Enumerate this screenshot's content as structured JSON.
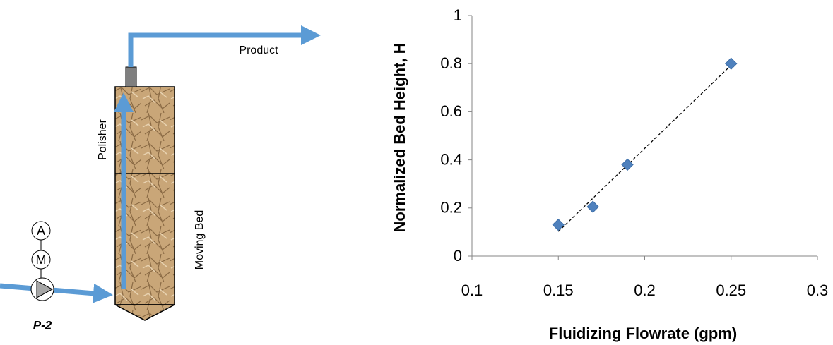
{
  "diagram": {
    "product": "Product",
    "polisher": "Polisher",
    "moving_bed": "Moving Bed",
    "meter_a": "A",
    "meter_m": "M",
    "pump": "P-2"
  },
  "chart_data": {
    "type": "scatter",
    "xlabel": "Fluidizing Flowrate (gpm)",
    "ylabel": "Normalized Bed Height, H",
    "x": [
      0.15,
      0.17,
      0.19,
      0.25
    ],
    "values": [
      0.13,
      0.205,
      0.38,
      0.8
    ],
    "color": "#4f81bd",
    "trendline": "linear",
    "xlim": [
      0.1,
      0.3
    ],
    "xticks": [
      0.1,
      0.15,
      0.2,
      0.25,
      0.3
    ],
    "ylim": [
      0,
      1
    ],
    "yticks": [
      0,
      0.2,
      0.4,
      0.6,
      0.8,
      1
    ],
    "grid": false
  }
}
